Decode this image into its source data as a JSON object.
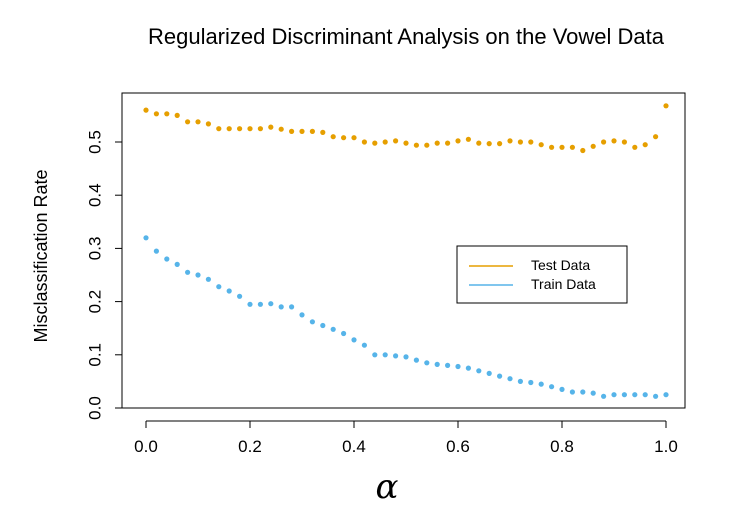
{
  "chart_data": {
    "type": "scatter",
    "title": "Regularized Discriminant Analysis on the Vowel Data",
    "xlabel": "α",
    "ylabel": "Misclassification Rate",
    "xlim": [
      0.0,
      1.0
    ],
    "ylim": [
      0.0,
      0.55
    ],
    "x_ticks": [
      "0.0",
      "0.2",
      "0.4",
      "0.6",
      "0.8",
      "1.0"
    ],
    "y_ticks": [
      "0.0",
      "0.1",
      "0.2",
      "0.3",
      "0.4",
      "0.5"
    ],
    "grid": false,
    "legend_position": "right-middle",
    "series": [
      {
        "name": "Test Data",
        "color": "#E69F00",
        "x": [
          0.0,
          0.02,
          0.04,
          0.06,
          0.08,
          0.1,
          0.12,
          0.14,
          0.16,
          0.18,
          0.2,
          0.22,
          0.24,
          0.26,
          0.28,
          0.3,
          0.32,
          0.34,
          0.36,
          0.38,
          0.4,
          0.42,
          0.44,
          0.46,
          0.48,
          0.5,
          0.52,
          0.54,
          0.56,
          0.58,
          0.6,
          0.62,
          0.64,
          0.66,
          0.68,
          0.7,
          0.72,
          0.74,
          0.76,
          0.78,
          0.8,
          0.82,
          0.84,
          0.86,
          0.88,
          0.9,
          0.92,
          0.94,
          0.96,
          0.98,
          1.0
        ],
        "values": [
          0.56,
          0.553,
          0.553,
          0.55,
          0.538,
          0.538,
          0.534,
          0.525,
          0.525,
          0.525,
          0.525,
          0.525,
          0.528,
          0.524,
          0.52,
          0.52,
          0.52,
          0.518,
          0.51,
          0.508,
          0.508,
          0.5,
          0.498,
          0.5,
          0.502,
          0.498,
          0.494,
          0.494,
          0.498,
          0.498,
          0.502,
          0.505,
          0.498,
          0.497,
          0.497,
          0.502,
          0.5,
          0.5,
          0.495,
          0.49,
          0.49,
          0.49,
          0.484,
          0.492,
          0.5,
          0.502,
          0.5,
          0.49,
          0.495,
          0.51,
          0.568
        ]
      },
      {
        "name": "Train Data",
        "color": "#56B4E9",
        "x": [
          0.0,
          0.02,
          0.04,
          0.06,
          0.08,
          0.1,
          0.12,
          0.14,
          0.16,
          0.18,
          0.2,
          0.22,
          0.24,
          0.26,
          0.28,
          0.3,
          0.32,
          0.34,
          0.36,
          0.38,
          0.4,
          0.42,
          0.44,
          0.46,
          0.48,
          0.5,
          0.52,
          0.54,
          0.56,
          0.58,
          0.6,
          0.62,
          0.64,
          0.66,
          0.68,
          0.7,
          0.72,
          0.74,
          0.76,
          0.78,
          0.8,
          0.82,
          0.84,
          0.86,
          0.88,
          0.9,
          0.92,
          0.94,
          0.96,
          0.98,
          1.0
        ],
        "values": [
          0.32,
          0.295,
          0.28,
          0.27,
          0.255,
          0.25,
          0.242,
          0.228,
          0.22,
          0.21,
          0.195,
          0.195,
          0.196,
          0.19,
          0.19,
          0.175,
          0.162,
          0.155,
          0.148,
          0.14,
          0.128,
          0.118,
          0.1,
          0.1,
          0.098,
          0.096,
          0.09,
          0.085,
          0.082,
          0.08,
          0.078,
          0.075,
          0.07,
          0.065,
          0.06,
          0.055,
          0.05,
          0.048,
          0.045,
          0.04,
          0.035,
          0.03,
          0.03,
          0.028,
          0.022,
          0.025,
          0.025,
          0.025,
          0.025,
          0.022,
          0.025
        ]
      }
    ]
  }
}
